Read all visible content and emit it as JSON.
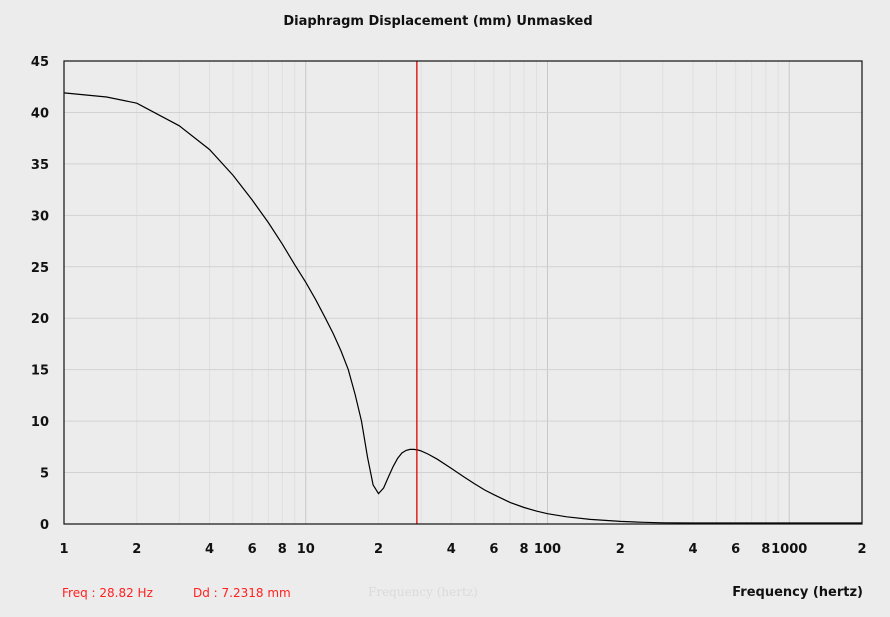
{
  "chart_data": {
    "type": "line",
    "title": "Diaphragm Displacement (mm)   Unmasked",
    "xlabel": "Frequency (hertz)",
    "ylabel": "",
    "x_scale": "log",
    "xlim": [
      1,
      2000
    ],
    "ylim": [
      0,
      45
    ],
    "grid": true,
    "y_ticks": [
      "0",
      "5",
      "10",
      "15",
      "20",
      "25",
      "30",
      "35",
      "40",
      "45"
    ],
    "x_ticks": [
      {
        "value": 1,
        "label": "1"
      },
      {
        "value": 2,
        "label": "2"
      },
      {
        "value": 4,
        "label": "4"
      },
      {
        "value": 6,
        "label": "6"
      },
      {
        "value": 8,
        "label": "8"
      },
      {
        "value": 10,
        "label": "10"
      },
      {
        "value": 20,
        "label": "2"
      },
      {
        "value": 40,
        "label": "4"
      },
      {
        "value": 60,
        "label": "6"
      },
      {
        "value": 80,
        "label": "8"
      },
      {
        "value": 100,
        "label": "100"
      },
      {
        "value": 200,
        "label": "2"
      },
      {
        "value": 400,
        "label": "4"
      },
      {
        "value": 600,
        "label": "6"
      },
      {
        "value": 800,
        "label": "8"
      },
      {
        "value": 1000,
        "label": "1000"
      },
      {
        "value": 2000,
        "label": "2"
      }
    ],
    "series": [
      {
        "color": "#000000",
        "x": [
          1,
          1.5,
          2,
          3,
          4,
          5,
          6,
          7,
          8,
          9,
          10,
          11,
          12,
          13,
          14,
          15,
          16,
          17,
          18,
          19,
          20,
          21,
          22,
          23,
          24,
          25,
          26,
          27,
          28,
          29,
          30,
          32,
          35,
          40,
          45,
          50,
          55,
          60,
          70,
          80,
          90,
          100,
          120,
          150,
          200,
          250,
          300,
          400,
          500,
          700,
          1000,
          1500,
          2000
        ],
        "y": [
          41.9,
          41.5,
          40.9,
          38.7,
          36.4,
          33.9,
          31.5,
          29.3,
          27.2,
          25.2,
          23.5,
          21.8,
          20.1,
          18.5,
          16.8,
          15.0,
          12.6,
          10.0,
          6.5,
          3.8,
          2.95,
          3.5,
          4.6,
          5.6,
          6.4,
          6.9,
          7.15,
          7.25,
          7.25,
          7.2,
          7.1,
          6.8,
          6.3,
          5.4,
          4.6,
          3.9,
          3.3,
          2.85,
          2.1,
          1.6,
          1.25,
          1.0,
          0.7,
          0.45,
          0.25,
          0.17,
          0.12,
          0.08,
          0.06,
          0.04,
          0.03,
          0.02,
          0.02
        ]
      }
    ],
    "cursor": {
      "x": 28.82,
      "color": "#e00000"
    }
  },
  "readout": {
    "freq": "Freq : 28.82 Hz",
    "dd": "Dd : 7.2318 mm",
    "ghost": "Frequency (hertz)"
  },
  "colors": {
    "plot_bg": "#ececec",
    "grid_major": "#d2d2d2",
    "grid_minor": "#e0e0e0",
    "curve": "#000000",
    "cursor": "#e00000",
    "readout": "#ff2020"
  }
}
